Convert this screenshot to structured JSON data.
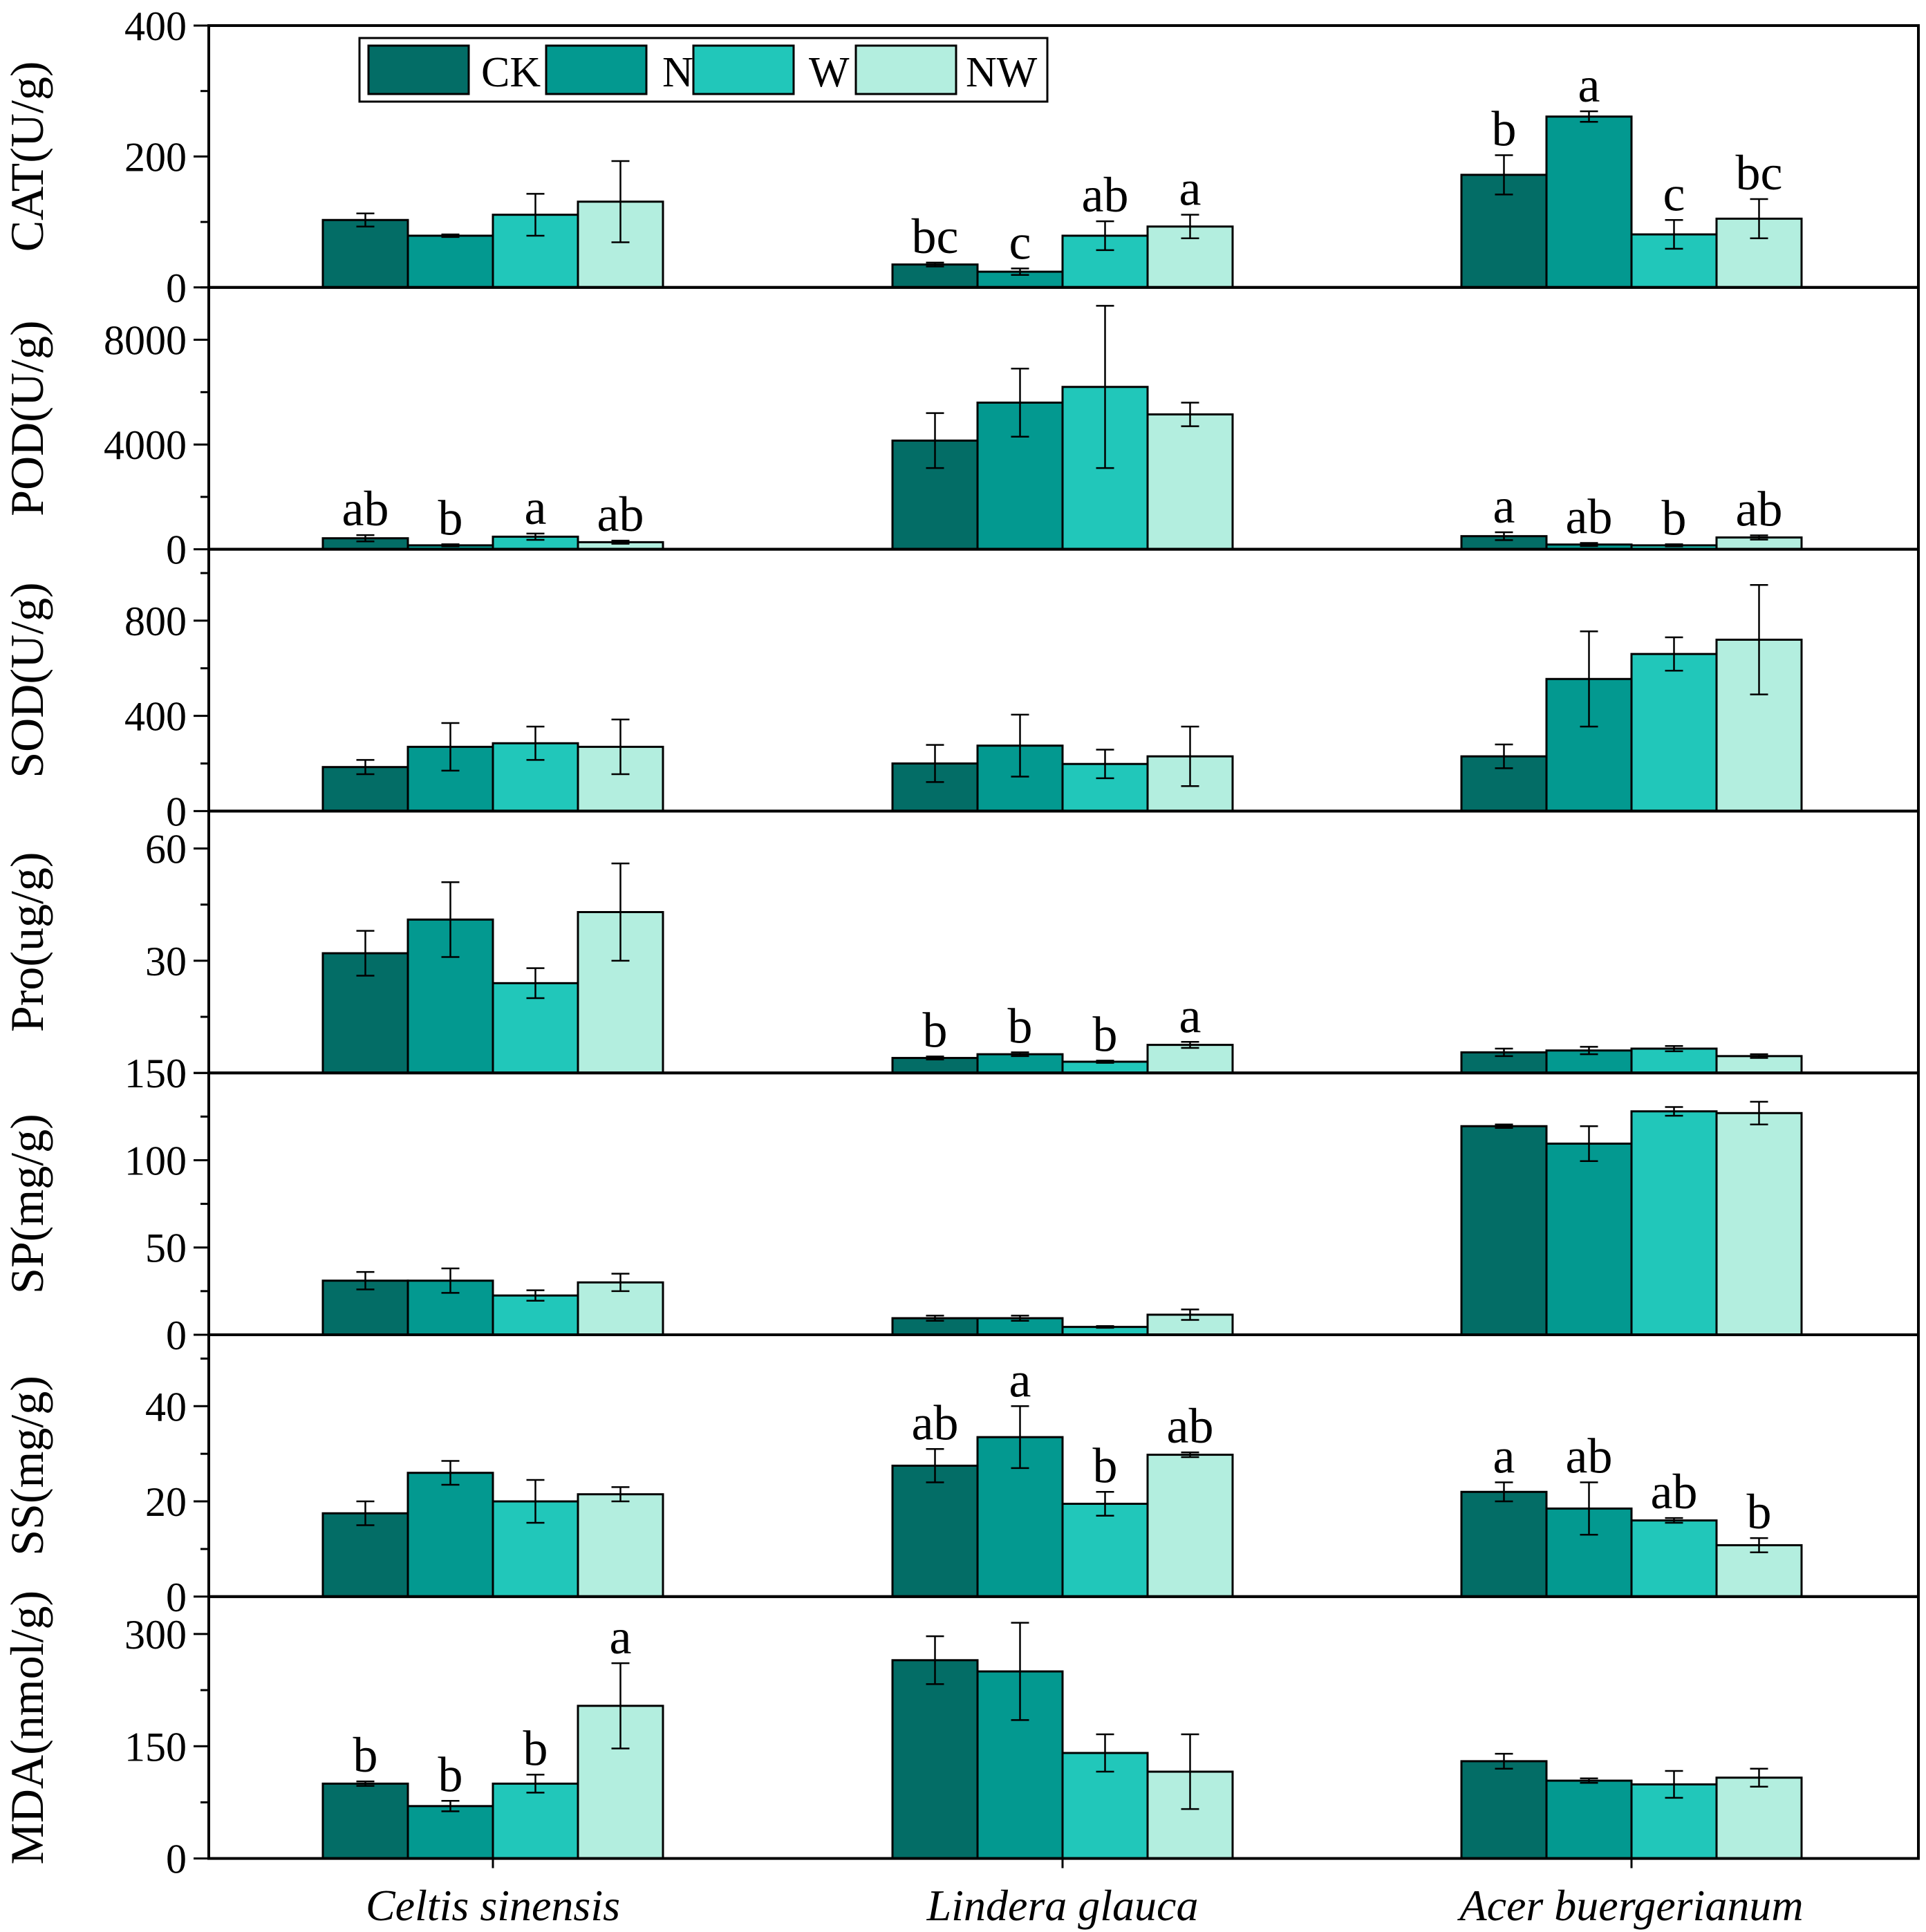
{
  "chart_data": {
    "type": "bar",
    "categories": [
      "Celtis sinensis",
      "Lindera glauca",
      "Acer buergerianum"
    ],
    "legend": {
      "placement": "top-left",
      "entries": [
        {
          "name": "CK",
          "color": "#036d66"
        },
        {
          "name": "N",
          "color": "#039990"
        },
        {
          "name": "W",
          "color": "#21c7ba"
        },
        {
          "name": "NW",
          "color": "#b3eedf"
        }
      ]
    },
    "panels": [
      {
        "ylabel": "CAT(U/g)",
        "ylim": [
          0,
          400
        ],
        "yticks": [
          0,
          200,
          400
        ],
        "tick_labels": [
          "0",
          "200",
          "400"
        ],
        "series": [
          {
            "name": "CK",
            "values": [
              103,
              35,
              172
            ],
            "errors": [
              10,
              3,
              30
            ],
            "letters": [
              "",
              "bc",
              "b"
            ]
          },
          {
            "name": "N",
            "values": [
              79,
              24,
              261
            ],
            "errors": [
              2,
              5,
              8
            ],
            "letters": [
              "",
              "c",
              "a"
            ]
          },
          {
            "name": "W",
            "values": [
              111,
              79,
              81
            ],
            "errors": [
              32,
              22,
              22
            ],
            "letters": [
              "",
              "ab",
              "c"
            ]
          },
          {
            "name": "NW",
            "values": [
              131,
              93,
              105
            ],
            "errors": [
              62,
              18,
              30
            ],
            "letters": [
              "",
              "a",
              "bc"
            ]
          }
        ]
      },
      {
        "ylabel": "POD(U/g)",
        "ylim": [
          0,
          10000
        ],
        "yticks": [
          0,
          4000,
          8000
        ],
        "tick_labels": [
          "0",
          "4000",
          "8000"
        ],
        "series": [
          {
            "name": "CK",
            "values": [
              420,
              4150,
              500
            ],
            "errors": [
              120,
              1050,
              150
            ],
            "letters": [
              "ab",
              "",
              "a"
            ]
          },
          {
            "name": "N",
            "values": [
              150,
              5600,
              180
            ],
            "errors": [
              40,
              1300,
              60
            ],
            "letters": [
              "b",
              "",
              "ab"
            ]
          },
          {
            "name": "W",
            "values": [
              480,
              6200,
              150
            ],
            "errors": [
              120,
              3100,
              40
            ],
            "letters": [
              "a",
              "",
              "b"
            ]
          },
          {
            "name": "NW",
            "values": [
              270,
              5150,
              450
            ],
            "errors": [
              60,
              450,
              80
            ],
            "letters": [
              "ab",
              "",
              "ab"
            ]
          }
        ]
      },
      {
        "ylabel": "SOD(U/g)",
        "ylim": [
          0,
          1100
        ],
        "yticks": [
          0,
          400,
          800
        ],
        "tick_labels": [
          "0",
          "400",
          "800"
        ],
        "series": [
          {
            "name": "CK",
            "values": [
              185,
              200,
              230
            ],
            "errors": [
              30,
              78,
              50
            ],
            "letters": [
              "",
              "",
              ""
            ]
          },
          {
            "name": "N",
            "values": [
              270,
              275,
              555
            ],
            "errors": [
              100,
              130,
              200
            ],
            "letters": [
              "",
              "",
              ""
            ]
          },
          {
            "name": "W",
            "values": [
              285,
              198,
              660
            ],
            "errors": [
              70,
              60,
              70
            ],
            "letters": [
              "",
              "",
              ""
            ]
          },
          {
            "name": "NW",
            "values": [
              270,
              230,
              720
            ],
            "errors": [
              115,
              125,
              230
            ],
            "letters": [
              "",
              "",
              ""
            ]
          }
        ]
      },
      {
        "ylabel": "Pro(ug/g)",
        "ylim": [
          0,
          70
        ],
        "yticks": [
          0,
          30,
          60
        ],
        "tick_labels": [
          "0",
          "30",
          "60"
        ],
        "series": [
          {
            "name": "CK",
            "values": [
              32,
              4,
              5.5
            ],
            "errors": [
              6,
              0.4,
              1
            ],
            "letters": [
              "",
              "b",
              ""
            ]
          },
          {
            "name": "N",
            "values": [
              41,
              5,
              6
            ],
            "errors": [
              10,
              0.5,
              1
            ],
            "letters": [
              "",
              "b",
              ""
            ]
          },
          {
            "name": "W",
            "values": [
              24,
              3,
              6.5
            ],
            "errors": [
              4,
              0.3,
              0.7
            ],
            "letters": [
              "",
              "b",
              ""
            ]
          },
          {
            "name": "NW",
            "values": [
              43,
              7.5,
              4.5
            ],
            "errors": [
              13,
              0.8,
              0.5
            ],
            "letters": [
              "",
              "a",
              ""
            ]
          }
        ]
      },
      {
        "ylabel": "SP(mg/g)",
        "ylim": [
          0,
          150
        ],
        "yticks": [
          0,
          50,
          100,
          150
        ],
        "tick_labels": [
          "0",
          "50",
          "100",
          "150"
        ],
        "series": [
          {
            "name": "CK",
            "values": [
              31,
              9.5,
              119.5
            ],
            "errors": [
              5,
              1.5,
              1
            ],
            "letters": [
              "",
              "",
              ""
            ]
          },
          {
            "name": "N",
            "values": [
              31,
              9.5,
              109.5
            ],
            "errors": [
              7,
              1.5,
              10
            ],
            "letters": [
              "",
              "",
              ""
            ]
          },
          {
            "name": "W",
            "values": [
              22.5,
              4.5,
              128
            ],
            "errors": [
              3,
              0.5,
              2.5
            ],
            "letters": [
              "",
              "",
              ""
            ]
          },
          {
            "name": "NW",
            "values": [
              30,
              11.5,
              127
            ],
            "errors": [
              5,
              3,
              6.5
            ],
            "letters": [
              "",
              "",
              ""
            ]
          }
        ]
      },
      {
        "ylabel": "SS(mg/g)",
        "ylim": [
          0,
          55
        ],
        "yticks": [
          0,
          20,
          40
        ],
        "tick_labels": [
          "0",
          "20",
          "40"
        ],
        "series": [
          {
            "name": "CK",
            "values": [
              17.5,
              27.5,
              22
            ],
            "errors": [
              2.5,
              3.5,
              2
            ],
            "letters": [
              "",
              "ab",
              "a"
            ]
          },
          {
            "name": "N",
            "values": [
              26,
              33.5,
              18.5
            ],
            "errors": [
              2.5,
              6.5,
              5.5
            ],
            "letters": [
              "",
              "a",
              "ab"
            ]
          },
          {
            "name": "W",
            "values": [
              20,
              19.5,
              16
            ],
            "errors": [
              4.5,
              2.5,
              0.5
            ],
            "letters": [
              "",
              "b",
              "ab"
            ]
          },
          {
            "name": "NW",
            "values": [
              21.5,
              29.8,
              10.8
            ],
            "errors": [
              1.5,
              0.5,
              1.5
            ],
            "letters": [
              "",
              "ab",
              "b"
            ]
          }
        ]
      },
      {
        "ylabel": "MDA(nmol/g)",
        "ylim": [
          0,
          350
        ],
        "yticks": [
          0,
          150,
          300
        ],
        "tick_labels": [
          "0",
          "150",
          "300"
        ],
        "series": [
          {
            "name": "CK",
            "values": [
              100,
              265,
              130
            ],
            "errors": [
              3,
              32,
              10
            ],
            "letters": [
              "b",
              "",
              ""
            ]
          },
          {
            "name": "N",
            "values": [
              70,
              250,
              104
            ],
            "errors": [
              7,
              65,
              3
            ],
            "letters": [
              "b",
              "",
              ""
            ]
          },
          {
            "name": "W",
            "values": [
              100,
              141,
              99
            ],
            "errors": [
              12,
              25,
              18
            ],
            "letters": [
              "b",
              "",
              ""
            ]
          },
          {
            "name": "NW",
            "values": [
              204,
              116,
              108
            ],
            "errors": [
              57,
              50,
              12
            ],
            "letters": [
              "a",
              "",
              ""
            ]
          }
        ]
      }
    ]
  }
}
